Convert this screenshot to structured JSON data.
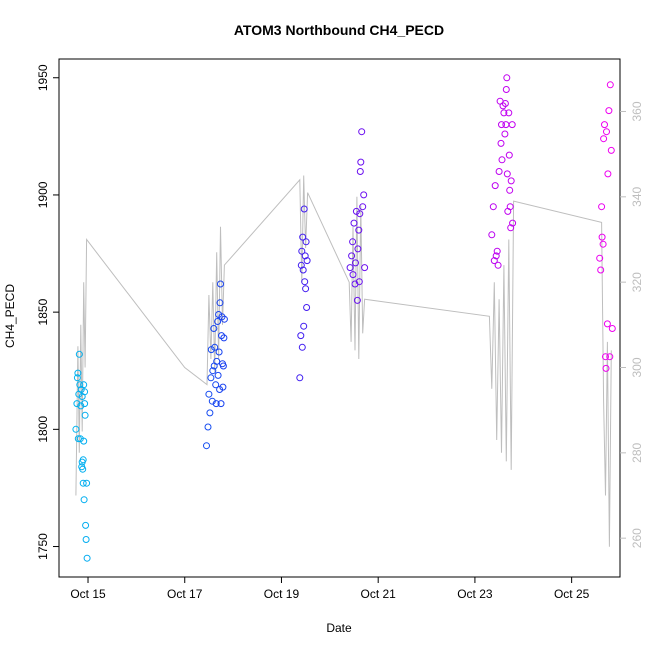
{
  "chart_data": {
    "type": "scatter",
    "title": "ATOM3 Northbound CH4_PECD",
    "xlabel": "Date",
    "ylabel": "CH4_PECD",
    "x_ticks": [
      "Oct 15",
      "Oct 17",
      "Oct 19",
      "Oct 21",
      "Oct 23",
      "Oct 25"
    ],
    "y_ticks": [
      1750,
      1800,
      1850,
      1900,
      1950
    ],
    "y2_ticks": [
      260,
      280,
      300,
      320,
      340,
      360
    ],
    "xlim": [
      14.4,
      26.0
    ],
    "ylim": [
      1737,
      1958
    ],
    "y2lim": [
      250.9,
      372.3
    ],
    "grid": false,
    "legend": "none",
    "colors": {
      "altitude_line": "#bebebe",
      "gradient": [
        "#00b4f0",
        "#1e28f0",
        "#a000f0",
        "#f000f0"
      ],
      "axis": "#000000",
      "right_axis": "#bebebe"
    },
    "series": [
      {
        "marker": "circle-open",
        "color_by": "time",
        "points": [
          [
            14.75,
            1800
          ],
          [
            14.77,
            1811
          ],
          [
            14.78,
            1822
          ],
          [
            14.79,
            1824
          ],
          [
            14.8,
            1796
          ],
          [
            14.81,
            1815
          ],
          [
            14.82,
            1832
          ],
          [
            14.83,
            1819
          ],
          [
            14.84,
            1796
          ],
          [
            14.85,
            1810
          ],
          [
            14.86,
            1817
          ],
          [
            14.87,
            1784
          ],
          [
            14.88,
            1786
          ],
          [
            14.88,
            1814
          ],
          [
            14.89,
            1783
          ],
          [
            14.9,
            1787
          ],
          [
            14.9,
            1777
          ],
          [
            14.91,
            1819
          ],
          [
            14.91,
            1795
          ],
          [
            14.92,
            1770
          ],
          [
            14.93,
            1816
          ],
          [
            14.93,
            1811
          ],
          [
            14.94,
            1806
          ],
          [
            14.95,
            1759
          ],
          [
            14.96,
            1753
          ],
          [
            14.97,
            1777
          ],
          [
            14.98,
            1745
          ],
          [
            17.45,
            1793
          ],
          [
            17.48,
            1801
          ],
          [
            17.5,
            1815
          ],
          [
            17.52,
            1807
          ],
          [
            17.54,
            1822
          ],
          [
            17.55,
            1834
          ],
          [
            17.57,
            1812
          ],
          [
            17.58,
            1825
          ],
          [
            17.6,
            1843
          ],
          [
            17.61,
            1827
          ],
          [
            17.62,
            1835
          ],
          [
            17.64,
            1819
          ],
          [
            17.65,
            1811
          ],
          [
            17.66,
            1829
          ],
          [
            17.68,
            1846
          ],
          [
            17.69,
            1823
          ],
          [
            17.7,
            1849
          ],
          [
            17.71,
            1833
          ],
          [
            17.72,
            1817
          ],
          [
            17.73,
            1854
          ],
          [
            17.74,
            1862
          ],
          [
            17.75,
            1811
          ],
          [
            17.76,
            1840
          ],
          [
            17.77,
            1848
          ],
          [
            17.78,
            1828
          ],
          [
            17.79,
            1818
          ],
          [
            17.8,
            1827
          ],
          [
            17.81,
            1839
          ],
          [
            17.82,
            1847
          ],
          [
            19.38,
            1822
          ],
          [
            19.4,
            1840
          ],
          [
            19.41,
            1870
          ],
          [
            19.42,
            1876
          ],
          [
            19.43,
            1835
          ],
          [
            19.44,
            1882
          ],
          [
            19.45,
            1868
          ],
          [
            19.46,
            1844
          ],
          [
            19.47,
            1894
          ],
          [
            19.48,
            1863
          ],
          [
            19.49,
            1874
          ],
          [
            19.5,
            1860
          ],
          [
            19.51,
            1880
          ],
          [
            19.52,
            1852
          ],
          [
            19.53,
            1872
          ],
          [
            20.42,
            1869
          ],
          [
            20.45,
            1874
          ],
          [
            20.47,
            1880
          ],
          [
            20.48,
            1866
          ],
          [
            20.5,
            1888
          ],
          [
            20.52,
            1862
          ],
          [
            20.53,
            1871
          ],
          [
            20.55,
            1893
          ],
          [
            20.57,
            1855
          ],
          [
            20.58,
            1877
          ],
          [
            20.6,
            1885
          ],
          [
            20.61,
            1863
          ],
          [
            20.62,
            1892
          ],
          [
            20.63,
            1910
          ],
          [
            20.64,
            1914
          ],
          [
            20.66,
            1927
          ],
          [
            20.68,
            1895
          ],
          [
            20.7,
            1900
          ],
          [
            20.72,
            1869
          ],
          [
            23.35,
            1883
          ],
          [
            23.38,
            1895
          ],
          [
            23.4,
            1872
          ],
          [
            23.42,
            1904
          ],
          [
            23.44,
            1874
          ],
          [
            23.46,
            1876
          ],
          [
            23.48,
            1870
          ],
          [
            23.5,
            1910
          ],
          [
            23.52,
            1940
          ],
          [
            23.54,
            1922
          ],
          [
            23.55,
            1930
          ],
          [
            23.56,
            1915
          ],
          [
            23.58,
            1938
          ],
          [
            23.6,
            1935
          ],
          [
            23.62,
            1926
          ],
          [
            23.63,
            1939
          ],
          [
            23.64,
            1930
          ],
          [
            23.65,
            1945
          ],
          [
            23.66,
            1950
          ],
          [
            23.67,
            1909
          ],
          [
            23.68,
            1893
          ],
          [
            23.7,
            1935
          ],
          [
            23.71,
            1917
          ],
          [
            23.72,
            1902
          ],
          [
            23.73,
            1895
          ],
          [
            23.74,
            1886
          ],
          [
            23.75,
            1906
          ],
          [
            23.77,
            1930
          ],
          [
            23.78,
            1888
          ],
          [
            25.58,
            1873
          ],
          [
            25.6,
            1868
          ],
          [
            25.62,
            1895
          ],
          [
            25.63,
            1882
          ],
          [
            25.65,
            1879
          ],
          [
            25.66,
            1924
          ],
          [
            25.68,
            1930
          ],
          [
            25.7,
            1831
          ],
          [
            25.71,
            1826
          ],
          [
            25.72,
            1927
          ],
          [
            25.74,
            1845
          ],
          [
            25.75,
            1909
          ],
          [
            25.77,
            1936
          ],
          [
            25.79,
            1831
          ],
          [
            25.8,
            1947
          ],
          [
            25.82,
            1919
          ],
          [
            25.84,
            1843
          ]
        ]
      },
      {
        "marker": "line",
        "axis": "right",
        "color": "#bebebe",
        "points": [
          [
            14.75,
            270
          ],
          [
            14.79,
            305
          ],
          [
            14.82,
            280
          ],
          [
            14.85,
            310
          ],
          [
            14.88,
            285
          ],
          [
            14.91,
            320
          ],
          [
            14.94,
            300
          ],
          [
            14.97,
            330
          ],
          [
            17.0,
            300
          ],
          [
            17.46,
            296
          ],
          [
            17.5,
            317
          ],
          [
            17.54,
            302
          ],
          [
            17.58,
            320
          ],
          [
            17.62,
            299
          ],
          [
            17.66,
            327
          ],
          [
            17.7,
            302
          ],
          [
            17.74,
            333
          ],
          [
            17.78,
            310
          ],
          [
            17.82,
            324
          ],
          [
            19.38,
            344
          ],
          [
            19.42,
            320
          ],
          [
            19.46,
            345
          ],
          [
            19.5,
            328
          ],
          [
            19.54,
            341
          ],
          [
            20.4,
            320
          ],
          [
            20.44,
            306
          ],
          [
            20.48,
            333
          ],
          [
            20.52,
            304
          ],
          [
            20.56,
            340
          ],
          [
            20.6,
            302
          ],
          [
            20.64,
            338
          ],
          [
            20.68,
            308
          ],
          [
            20.72,
            316
          ],
          [
            23.3,
            312
          ],
          [
            23.35,
            295
          ],
          [
            23.4,
            320
          ],
          [
            23.45,
            283
          ],
          [
            23.5,
            316
          ],
          [
            23.55,
            280
          ],
          [
            23.6,
            324
          ],
          [
            23.65,
            278
          ],
          [
            23.7,
            330
          ],
          [
            23.75,
            276
          ],
          [
            23.8,
            339
          ],
          [
            25.62,
            334
          ],
          [
            25.66,
            292
          ],
          [
            25.7,
            270
          ],
          [
            25.74,
            306
          ],
          [
            25.78,
            258
          ],
          [
            25.82,
            304
          ]
        ]
      }
    ]
  }
}
